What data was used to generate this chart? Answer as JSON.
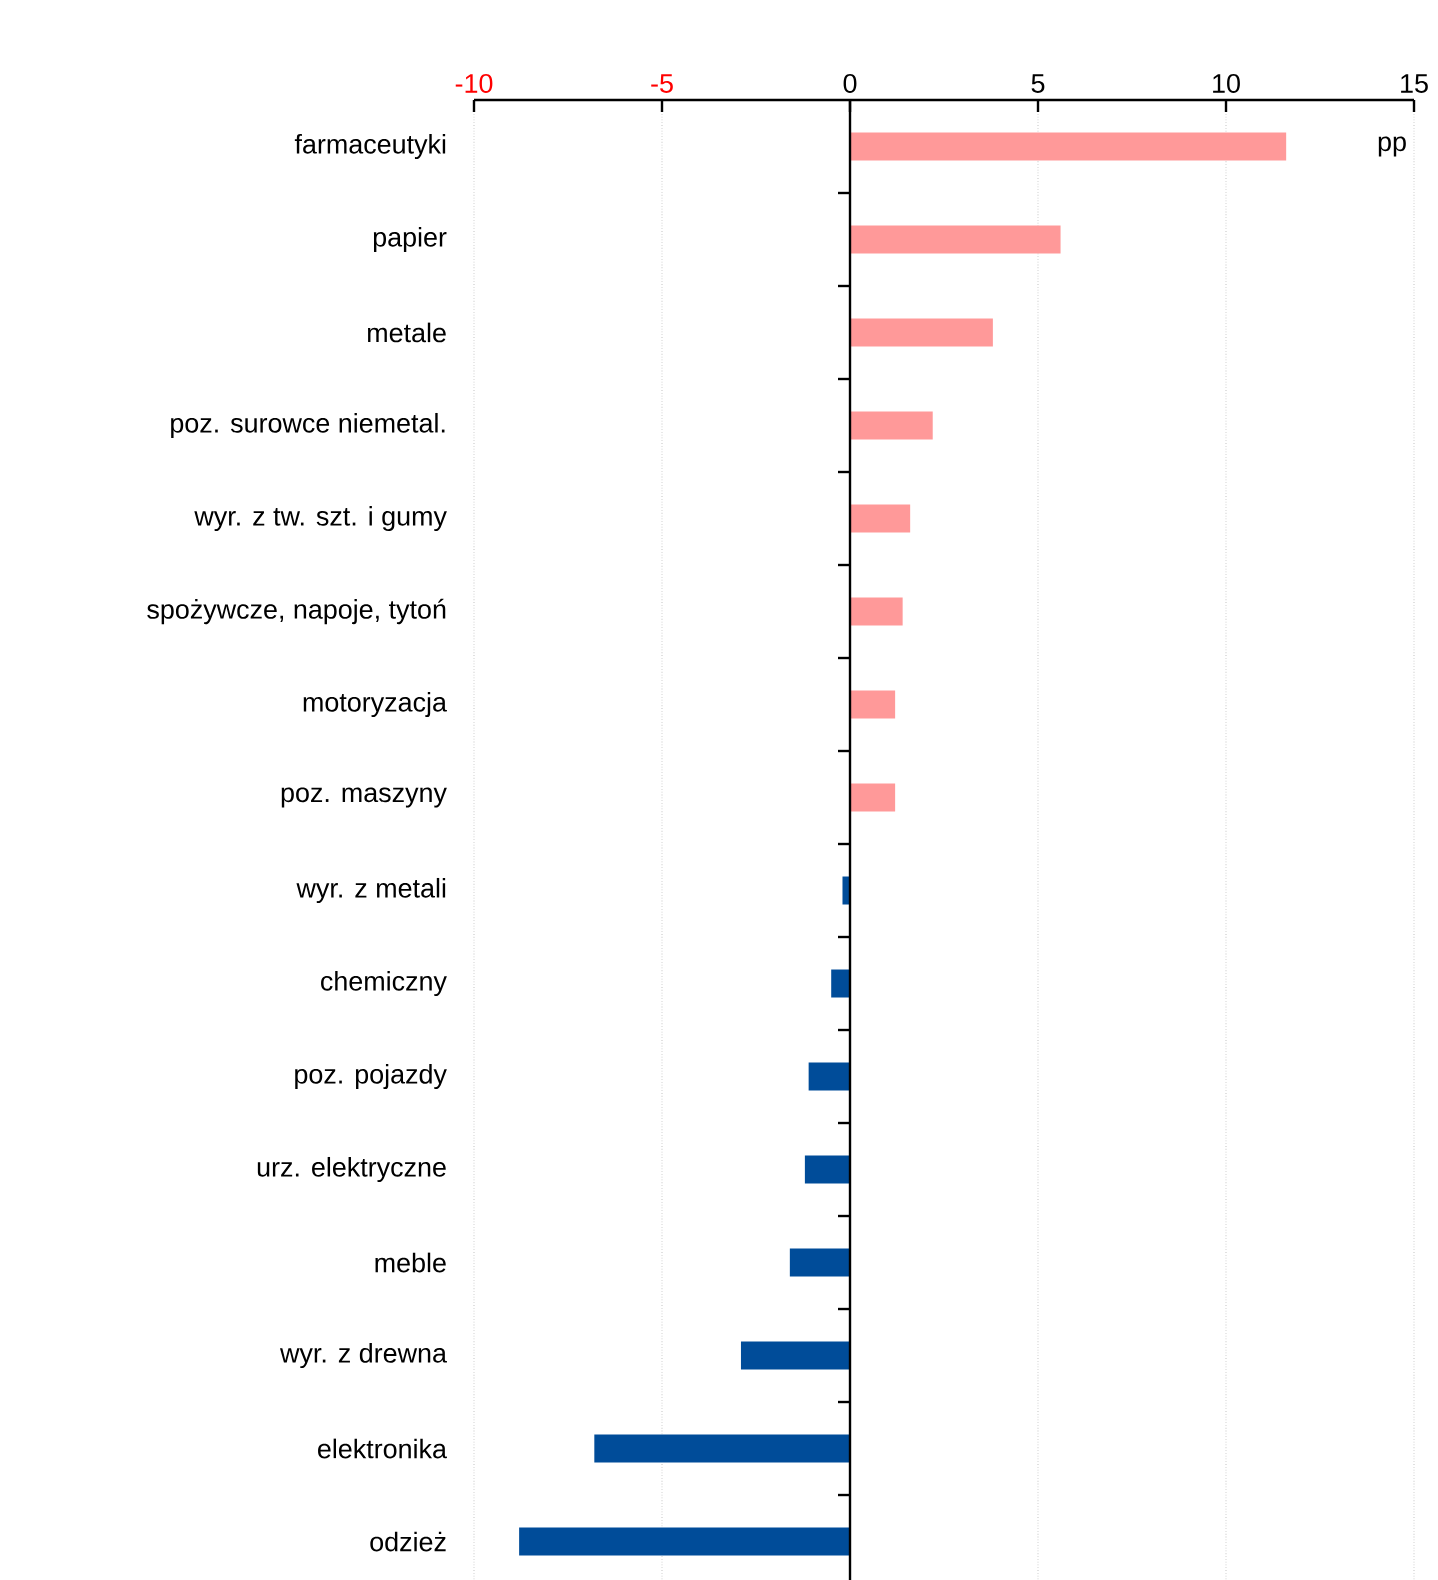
{
  "chart_data": {
    "type": "bar",
    "orientation": "horizontal",
    "categories": [
      "farmaceutyki",
      "papier",
      "metale",
      "poz. surowce niemetal.",
      "wyr. z tw. szt. i gumy",
      "spożywcze, napoje, tytoń",
      "motoryzacja",
      "poz. maszyny",
      "wyr. z metali",
      "chemiczny",
      "poz. pojazdy",
      "urz. elektryczne",
      "meble",
      "wyr. z drewna",
      "elektronika",
      "odzież"
    ],
    "values": [
      11.6,
      5.6,
      3.8,
      2.2,
      1.6,
      1.4,
      1.2,
      1.2,
      -0.2,
      -0.5,
      -1.1,
      -1.2,
      -1.6,
      -2.9,
      -6.8,
      -8.8
    ],
    "colors": [
      "#ff9999",
      "#ff9999",
      "#ff9999",
      "#ff9999",
      "#ff9999",
      "#ff9999",
      "#ff9999",
      "#ff9999",
      "#004c99",
      "#004c99",
      "#004c99",
      "#004c99",
      "#004c99",
      "#004c99",
      "#004c99",
      "#004c99"
    ],
    "xlim": [
      -10,
      15
    ],
    "xticks": [
      -10,
      -5,
      0,
      5,
      10,
      15
    ],
    "grid": "x",
    "annotations": [
      "pp"
    ]
  }
}
